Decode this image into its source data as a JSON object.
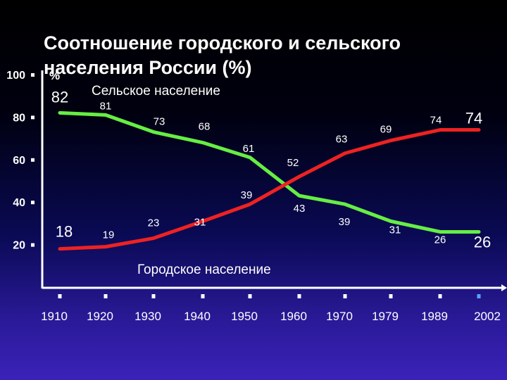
{
  "title": "Соотношение городского и сельского населения России (%)",
  "chart_data": {
    "type": "line",
    "x": [
      "1910",
      "1920",
      "1930",
      "1940",
      "1950",
      "1960",
      "1970",
      "1979",
      "1989",
      "2002"
    ],
    "ylim": [
      0,
      100
    ],
    "yticks": [
      "100",
      "80",
      "60",
      "40",
      "20"
    ],
    "y_unit": "%",
    "grid": false,
    "series": [
      {
        "name": "Сельское население",
        "color": "#66ee44",
        "values": [
          82,
          81,
          73,
          68,
          61,
          43,
          39,
          31,
          26,
          26
        ],
        "labels": [
          "82",
          "81",
          "73",
          "68",
          "61",
          "43",
          "39",
          "31",
          "26",
          "26"
        ]
      },
      {
        "name": "Городское население",
        "color": "#ee2222",
        "values": [
          18,
          19,
          23,
          31,
          39,
          52,
          63,
          69,
          74,
          74
        ],
        "labels": [
          "18",
          "19",
          "23",
          "31",
          "39",
          "52",
          "63",
          "69",
          "74",
          "74"
        ]
      }
    ],
    "axis_color": "#ffffff",
    "label_color": "#ffffff",
    "value_label_color": "#ffffff"
  }
}
